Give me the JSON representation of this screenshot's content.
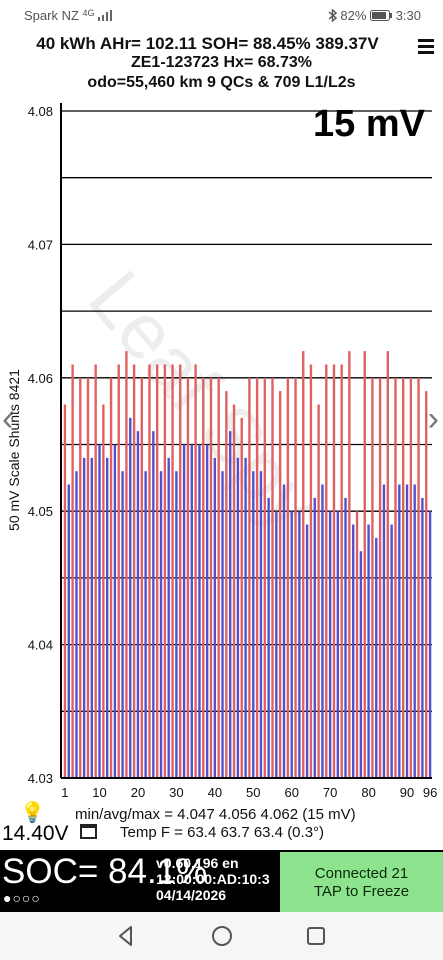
{
  "status_bar": {
    "carrier": "Spark NZ",
    "network": "4G",
    "battery": "82%",
    "time": "3:30"
  },
  "header": {
    "line1": "40 kWh  AHr= 102.11 SOH= 88.45% 389.37V",
    "line2": "ZE1-123723   Hx= 68.73%",
    "line3": "odo=55,460 km 9 QCs & 709 L1/L2s"
  },
  "scale_label": "15 mV",
  "watermark": "Leaf Spy",
  "chart_data": {
    "type": "bar",
    "ylabel": "50 mV Scale Shunts 8421",
    "ylim": [
      4.03,
      4.08
    ],
    "yticks": [
      "4.08",
      "4.07",
      "4.06",
      "4.05",
      "4.04",
      "4.03"
    ],
    "xticks": [
      "1",
      "10",
      "20",
      "30",
      "40",
      "50",
      "60",
      "70",
      "80",
      "90",
      "96"
    ],
    "colors": {
      "odd": "#e06060",
      "even": "#5050d0"
    },
    "cells": [
      1,
      2,
      3,
      4,
      5,
      6,
      7,
      8,
      9,
      10,
      11,
      12,
      13,
      14,
      15,
      16,
      17,
      18,
      19,
      20,
      21,
      22,
      23,
      24,
      25,
      26,
      27,
      28,
      29,
      30,
      31,
      32,
      33,
      34,
      35,
      36,
      37,
      38,
      39,
      40,
      41,
      42,
      43,
      44,
      45,
      46,
      47,
      48,
      49,
      50,
      51,
      52,
      53,
      54,
      55,
      56,
      57,
      58,
      59,
      60,
      61,
      62,
      63,
      64,
      65,
      66,
      67,
      68,
      69,
      70,
      71,
      72,
      73,
      74,
      75,
      76,
      77,
      78,
      79,
      80,
      81,
      82,
      83,
      84,
      85,
      86,
      87,
      88,
      89,
      90,
      91,
      92,
      93,
      94,
      95,
      96
    ],
    "values": [
      4.058,
      4.052,
      4.061,
      4.053,
      4.06,
      4.054,
      4.06,
      4.054,
      4.061,
      4.055,
      4.058,
      4.054,
      4.06,
      4.055,
      4.061,
      4.053,
      4.062,
      4.057,
      4.061,
      4.056,
      4.06,
      4.053,
      4.061,
      4.056,
      4.061,
      4.053,
      4.061,
      4.054,
      4.061,
      4.053,
      4.061,
      4.055,
      4.06,
      4.055,
      4.061,
      4.055,
      4.06,
      4.055,
      4.06,
      4.054,
      4.06,
      4.053,
      4.059,
      4.056,
      4.058,
      4.054,
      4.057,
      4.054,
      4.06,
      4.053,
      4.06,
      4.053,
      4.06,
      4.051,
      4.06,
      4.05,
      4.059,
      4.052,
      4.06,
      4.05,
      4.06,
      4.05,
      4.062,
      4.049,
      4.061,
      4.051,
      4.058,
      4.052,
      4.061,
      4.05,
      4.061,
      4.05,
      4.061,
      4.051,
      4.062,
      4.049,
      4.05,
      4.047,
      4.062,
      4.049,
      4.06,
      4.048,
      4.06,
      4.052,
      4.062,
      4.049,
      4.06,
      4.052,
      4.06,
      4.052,
      4.06,
      4.052,
      4.06,
      4.051,
      4.059,
      4.05
    ]
  },
  "bottom": {
    "voltage": "14.40V",
    "stats_line1": "min/avg/max = 4.047 4.056 4.062  (15 mV)",
    "stats_line2": "Temp F = 63.4  63.7  63.4  (0.3°)",
    "soc": "SOC= 84.1%",
    "dots": "●○○○",
    "info1": "v0.60.196 en",
    "info2": "12:00:00:AD:10:3",
    "info3": "04/14/2026",
    "connected": "Connected 21\nTAP to Freeze"
  }
}
